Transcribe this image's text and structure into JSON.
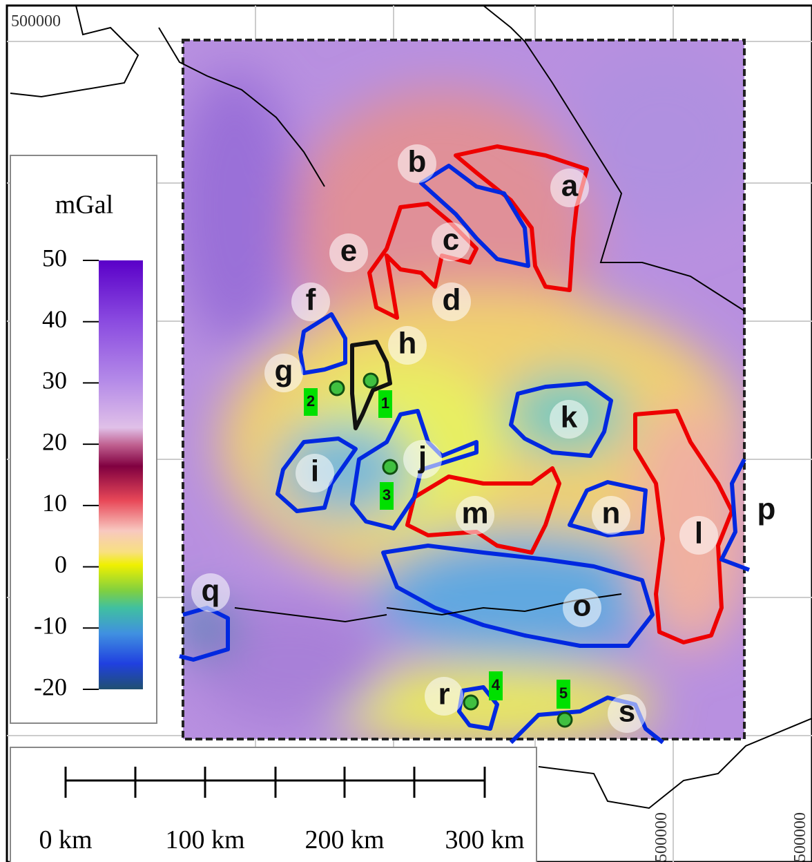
{
  "legend": {
    "unit": "mGal",
    "ticks": [
      50,
      40,
      30,
      20,
      10,
      0,
      -10,
      -20
    ]
  },
  "scale_bar": {
    "labels": [
      "0 km",
      "100 km",
      "200 km",
      "300 km"
    ]
  },
  "coordinates": {
    "top_left": "500000",
    "bottom": [
      "500000",
      "500000"
    ]
  },
  "zones": [
    "a",
    "b",
    "c",
    "d",
    "e",
    "f",
    "g",
    "h",
    "i",
    "j",
    "k",
    "l",
    "m",
    "n",
    "o",
    "p",
    "q",
    "r",
    "s"
  ],
  "stations": [
    "1",
    "2",
    "3",
    "4",
    "5"
  ]
}
